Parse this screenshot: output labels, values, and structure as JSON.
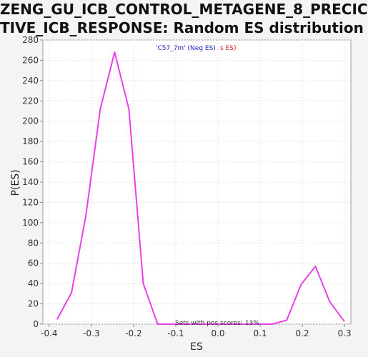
{
  "page": {
    "title_line1": "ZENG_GU_ICB_CONTROL_METAGENE_8_PRECIC",
    "title_line2": "TIVE_ICB_RESPONSE: Random ES distribution"
  },
  "colors": {
    "background": "#f4f4f4",
    "plot_background": "#ffffff",
    "line": "#e840e8",
    "grid": "#e6e6e6",
    "neg_annotation": "#2020cc",
    "pos_annotation": "#dd2222"
  },
  "chart_data": {
    "type": "line",
    "title": "ZENG_GU_ICB_CONTROL_METAGENE_8_PRECICTIVE_ICB_RESPONSE: Random ES distribution",
    "xlabel": "ES",
    "ylabel": "P(ES)",
    "xlim": [
      -0.415,
      0.315
    ],
    "ylim": [
      0,
      280
    ],
    "grid": true,
    "x_ticks": [
      -0.4,
      -0.3,
      -0.2,
      -0.1,
      0.0,
      0.1,
      0.2,
      0.3
    ],
    "x_tick_labels": [
      "-0.4",
      "-0.3",
      "-0.2",
      "-0.1",
      "0.0",
      "0.1",
      "0.2",
      "0.3"
    ],
    "y_ticks": [
      0,
      20,
      40,
      60,
      80,
      100,
      120,
      140,
      160,
      180,
      200,
      220,
      240,
      260,
      280
    ],
    "y_tick_labels": [
      "0",
      "20",
      "40",
      "60",
      "80",
      "100",
      "120",
      "140",
      "160",
      "180",
      "200",
      "220",
      "240",
      "260",
      "280"
    ],
    "series": [
      {
        "x": [
          -0.381,
          -0.347,
          -0.313,
          -0.279,
          -0.245,
          -0.211,
          -0.177,
          -0.143,
          -0.109,
          -0.075,
          -0.041,
          -0.007,
          0.027,
          0.061,
          0.095,
          0.129,
          0.163,
          0.197,
          0.231,
          0.265,
          0.299
        ],
        "y": [
          5,
          31,
          107,
          212,
          268,
          212,
          40,
          0,
          0,
          0,
          0,
          0,
          0,
          0,
          0,
          0,
          4,
          39,
          57,
          22,
          3
        ]
      }
    ],
    "annotations": {
      "neg_part": "'C57_7m' (Neg ES)",
      "pos_part": "s ES)",
      "bottom_note": "Sets with pos scores: 13%"
    }
  }
}
